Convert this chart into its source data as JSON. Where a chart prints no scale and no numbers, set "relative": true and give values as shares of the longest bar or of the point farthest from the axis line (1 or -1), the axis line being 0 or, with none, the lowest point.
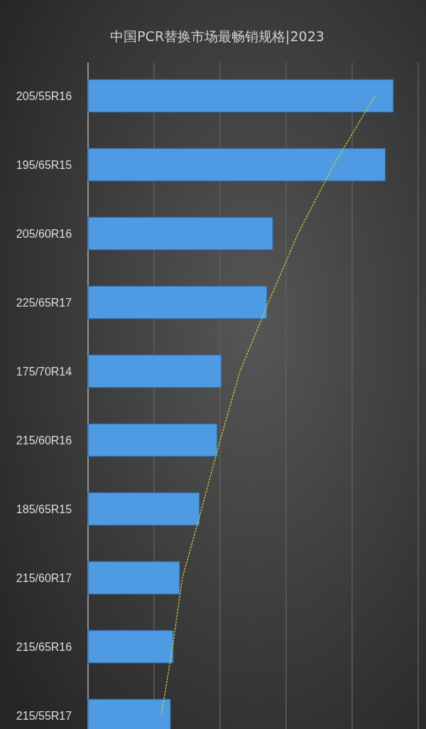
{
  "chart_data": {
    "type": "bar",
    "orientation": "horizontal",
    "relative": true,
    "grid": "x",
    "title": "中国PCR替换市场最畅销规格|2023",
    "categories": [
      "205/55R16",
      "195/65R15",
      "205/60R16",
      "225/65R17",
      "175/70R14",
      "215/60R16",
      "185/65R15",
      "215/60R17",
      "215/65R16",
      "215/55R17"
    ],
    "series": [
      {
        "type": "bar",
        "color": "#4f9be3",
        "values": [
          1,
          0.974,
          0.605,
          0.586,
          0.437,
          0.423,
          0.365,
          0.3,
          0.279,
          0.27
        ]
      },
      {
        "type": "line",
        "color": "#c8cc3c",
        "line_style": "dashed",
        "values": [
          0.94,
          0.805,
          0.688,
          0.591,
          0.498,
          0.433,
          0.372,
          0.309,
          0.277,
          0.24
        ]
      }
    ]
  }
}
